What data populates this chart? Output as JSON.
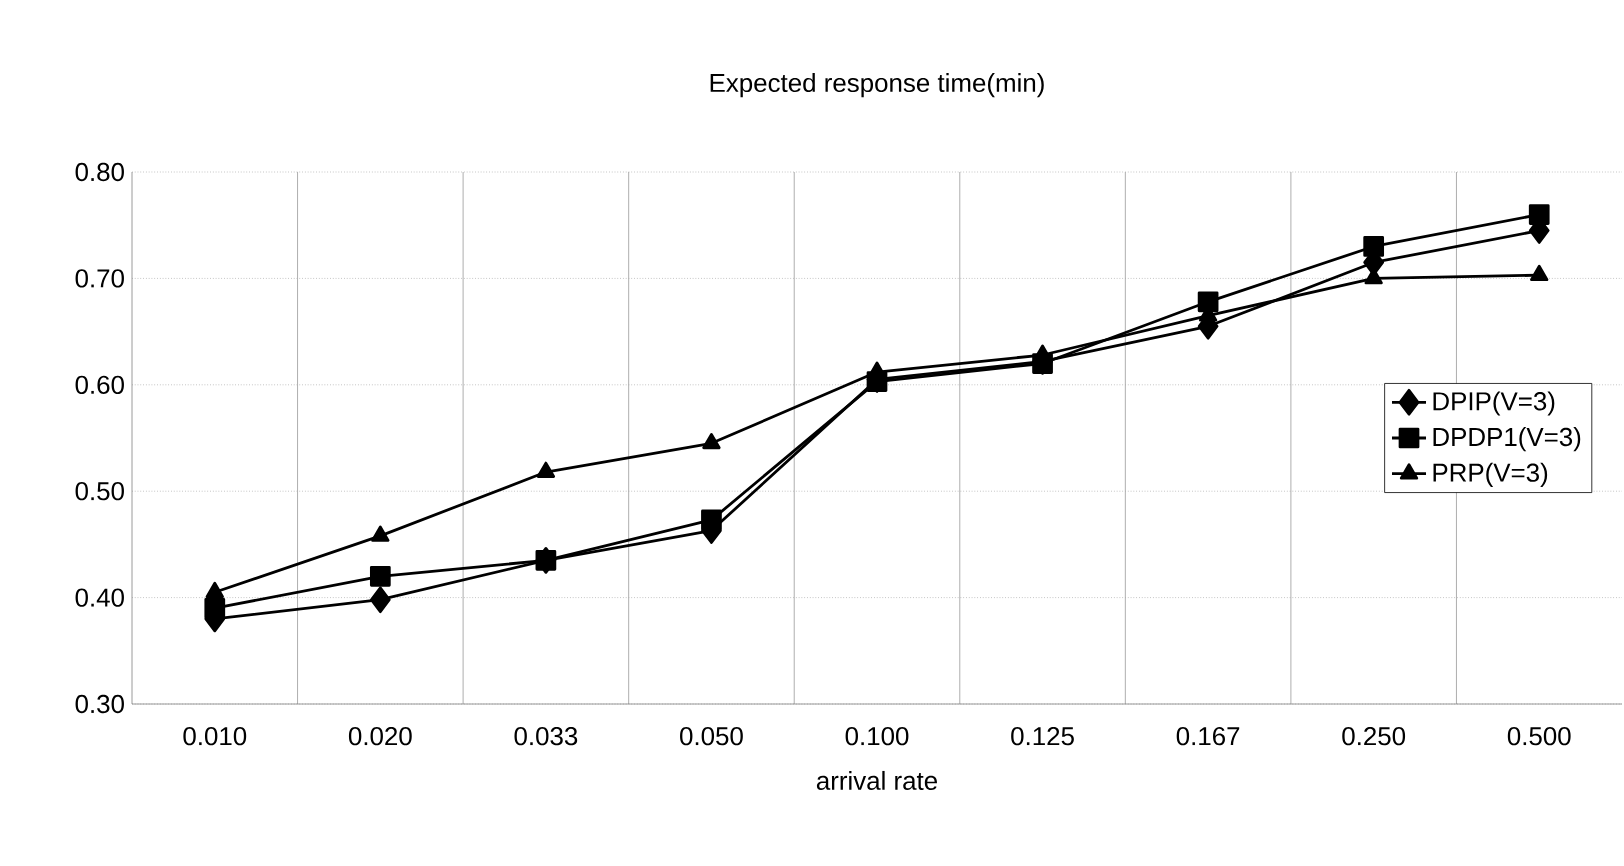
{
  "chart_data": {
    "type": "line",
    "title": "Expected response time(min)",
    "xlabel": "arrival rate",
    "categories": [
      "0.010",
      "0.020",
      "0.033",
      "0.050",
      "0.100",
      "0.125",
      "0.167",
      "0.250",
      "0.500"
    ],
    "series": [
      {
        "name": "DPIP(V=3)",
        "color": "#000000",
        "marker": "diamond",
        "values": [
          0.38,
          0.398,
          0.435,
          0.463,
          0.605,
          0.622,
          0.655,
          0.715,
          0.745
        ]
      },
      {
        "name": "DPDP1(V=3)",
        "color": "#000000",
        "marker": "square",
        "values": [
          0.39,
          0.42,
          0.435,
          0.473,
          0.603,
          0.62,
          0.678,
          0.73,
          0.76
        ]
      },
      {
        "name": "PRP(V=3)",
        "color": "#000000",
        "marker": "triangle",
        "values": [
          0.405,
          0.458,
          0.518,
          0.545,
          0.612,
          0.628,
          0.665,
          0.7,
          0.703
        ]
      }
    ],
    "ylim": [
      0.3,
      0.8
    ],
    "yticks": [
      {
        "value": 0.3,
        "label": "0.30"
      },
      {
        "value": 0.4,
        "label": "0.40"
      },
      {
        "value": 0.5,
        "label": "0.50"
      },
      {
        "value": 0.6,
        "label": "0.60"
      },
      {
        "value": 0.7,
        "label": "0.70"
      },
      {
        "value": 0.8,
        "label": "0.80"
      }
    ],
    "grid": true,
    "legend": "right",
    "line_style": "solid"
  }
}
